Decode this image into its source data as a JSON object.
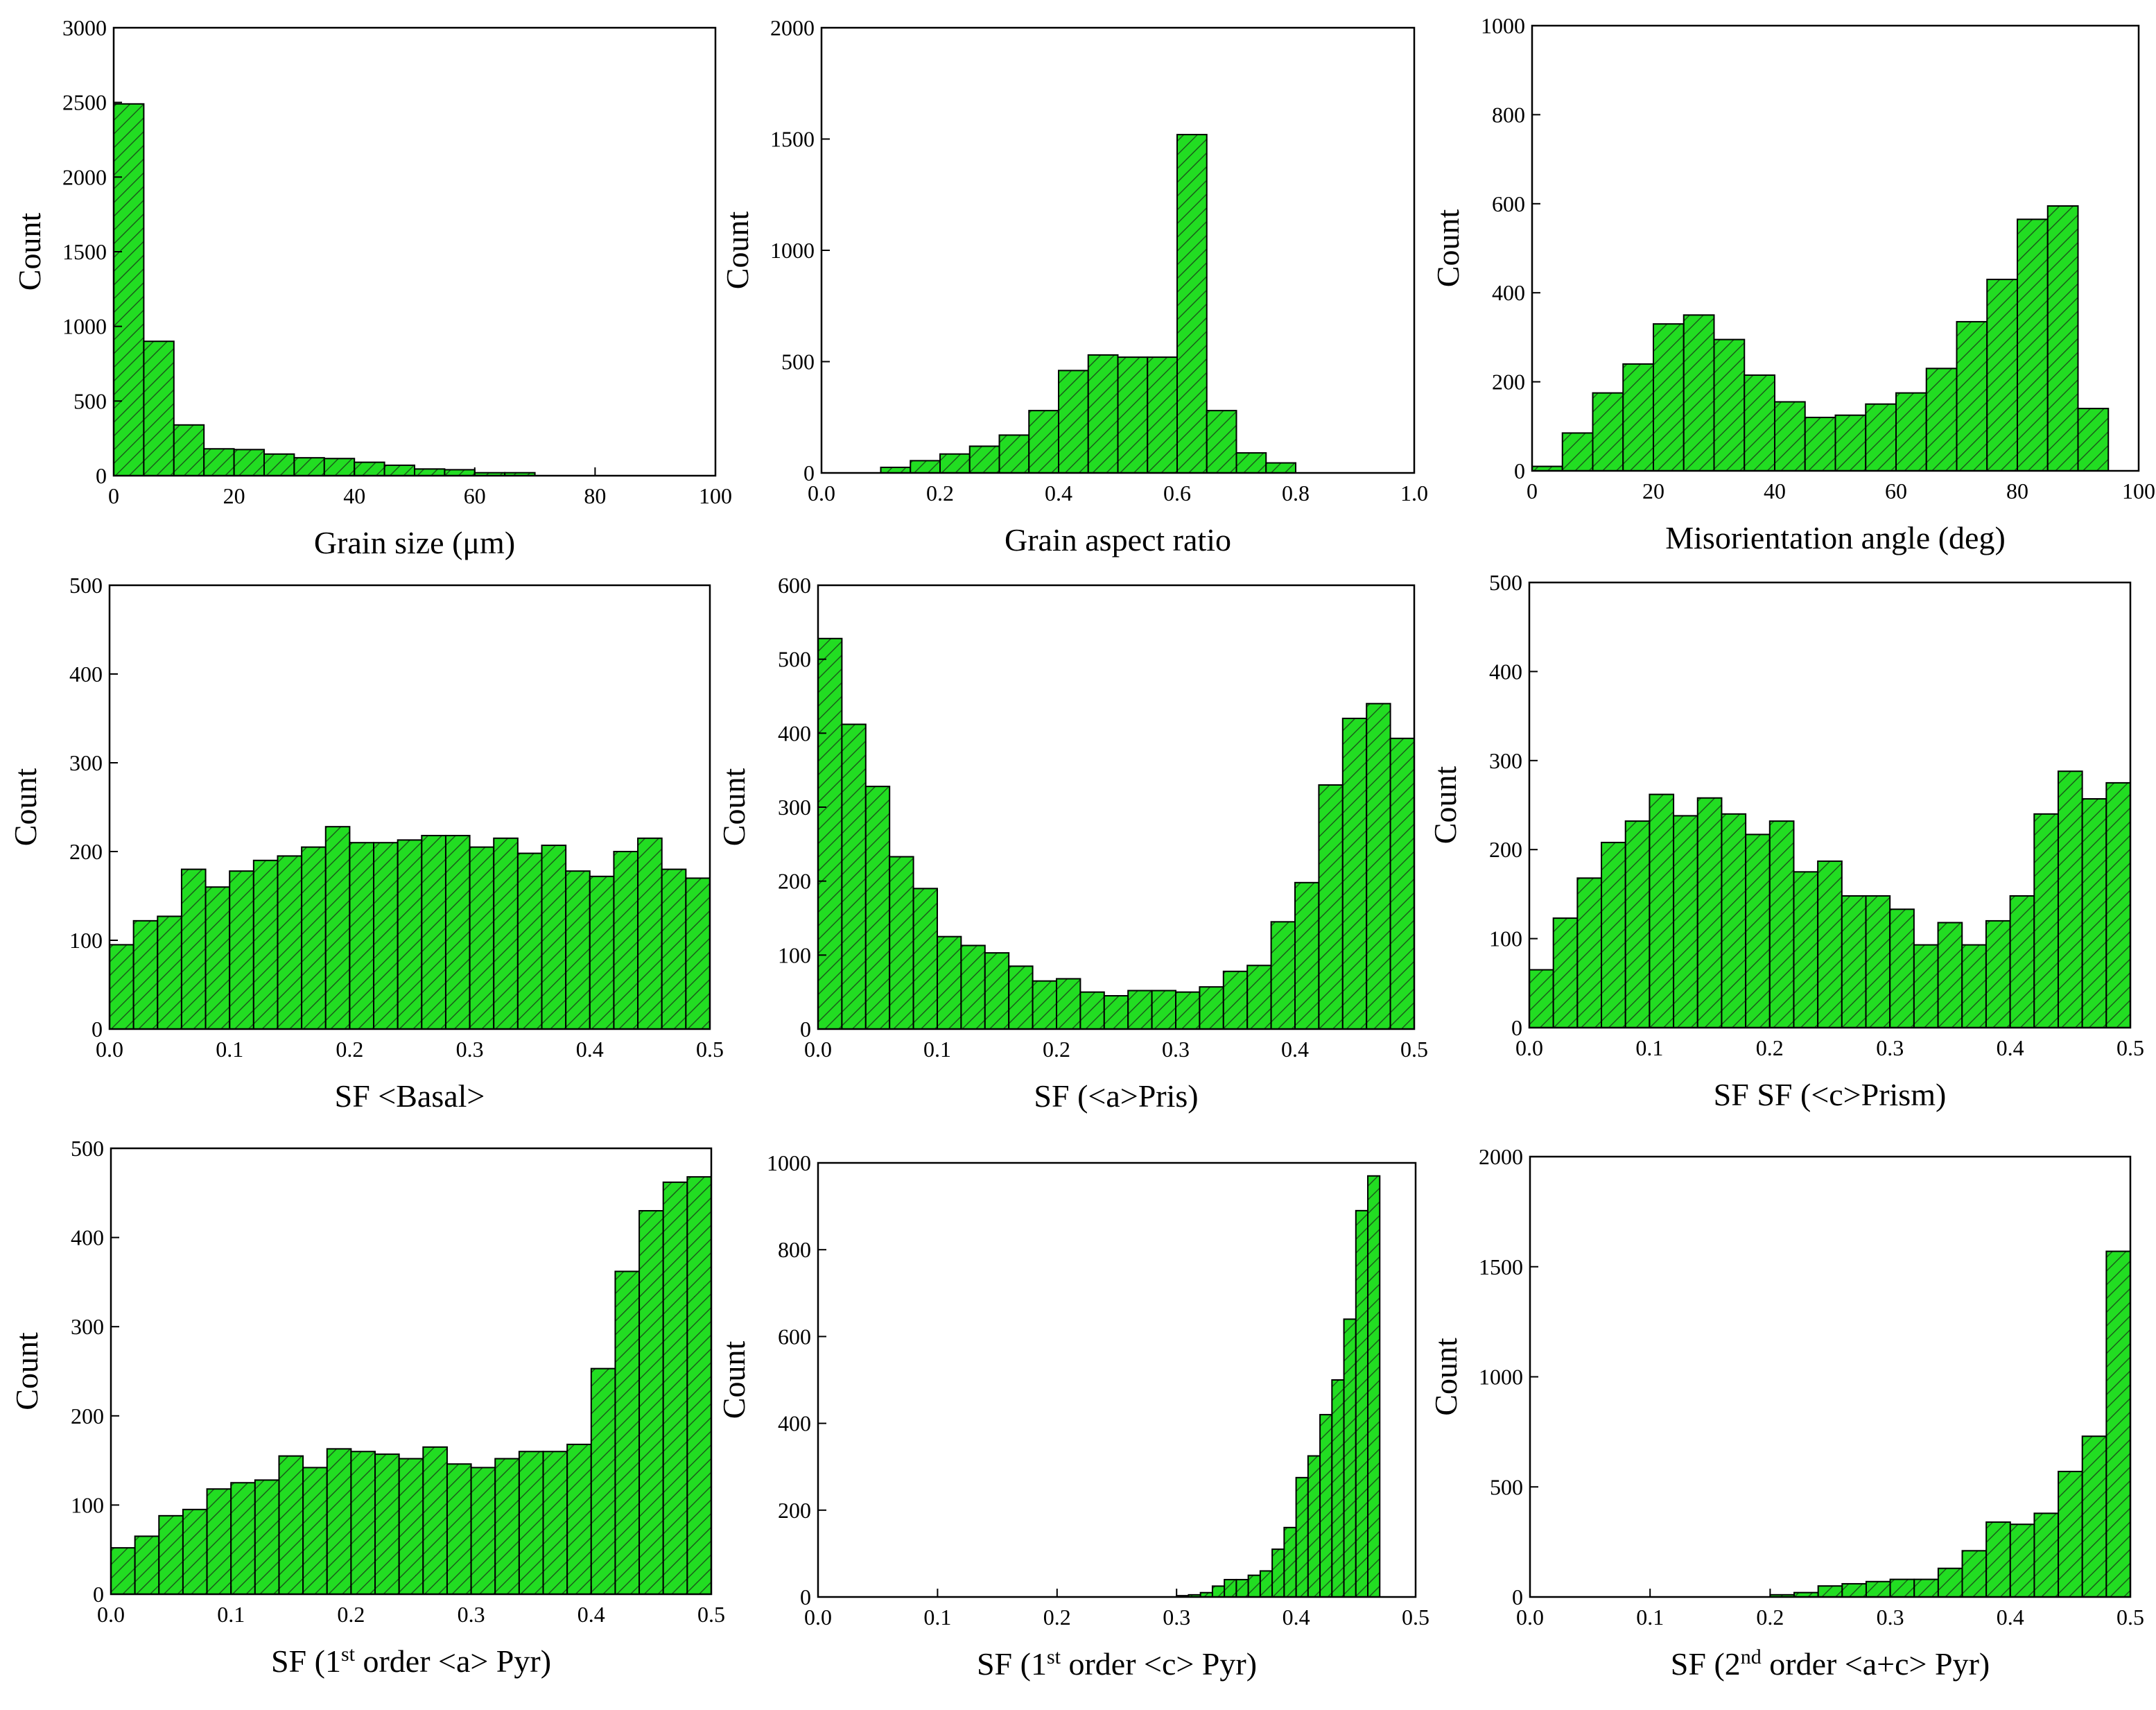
{
  "figure": {
    "accent_fill": "#22dd22",
    "hatch_color": "#1a5e1a",
    "edge_color": "#000000"
  },
  "chart_data": [
    {
      "type": "bar",
      "title": "",
      "xlabel_parts": [
        {
          "t": "Grain size (μm)"
        }
      ],
      "ylabel": "Count",
      "x": {
        "min": 0,
        "max": 100,
        "ticks": [
          0,
          20,
          40,
          60,
          80,
          100
        ],
        "labels": [
          "0",
          "20",
          "40",
          "60",
          "80",
          "100"
        ]
      },
      "y": {
        "min": 0,
        "max": 3000,
        "ticks": [
          0,
          500,
          1000,
          1500,
          2000,
          2500,
          3000
        ],
        "labels": [
          "0",
          "500",
          "1000",
          "1500",
          "2000",
          "2500",
          "3000"
        ]
      },
      "bin_start": 0,
      "bin_width": 5,
      "values": [
        2490,
        900,
        340,
        180,
        175,
        145,
        120,
        115,
        90,
        70,
        45,
        40,
        20,
        20
      ]
    },
    {
      "type": "bar",
      "title": "",
      "xlabel_parts": [
        {
          "t": "Grain aspect ratio"
        }
      ],
      "ylabel": "Count",
      "x": {
        "min": 0,
        "max": 1.0,
        "ticks": [
          0,
          0.2,
          0.4,
          0.6,
          0.8,
          1.0
        ],
        "labels": [
          "0.0",
          "0.2",
          "0.4",
          "0.6",
          "0.8",
          "1.0"
        ]
      },
      "y": {
        "min": 0,
        "max": 2000,
        "ticks": [
          0,
          500,
          1000,
          1500,
          2000
        ],
        "labels": [
          "0",
          "500",
          "1000",
          "1500",
          "2000"
        ]
      },
      "bin_start": 0.1,
      "bin_width": 0.05,
      "values": [
        25,
        55,
        85,
        120,
        170,
        280,
        460,
        530,
        520,
        520,
        1520,
        280,
        90,
        45
      ]
    },
    {
      "type": "bar",
      "title": "",
      "xlabel_parts": [
        {
          "t": "Misorientation angle (deg)"
        }
      ],
      "ylabel": "Count",
      "x": {
        "min": 0,
        "max": 100,
        "ticks": [
          0,
          20,
          40,
          60,
          80,
          100
        ],
        "labels": [
          "0",
          "20",
          "40",
          "60",
          "80",
          "100"
        ]
      },
      "y": {
        "min": 0,
        "max": 1000,
        "ticks": [
          0,
          200,
          400,
          600,
          800,
          1000
        ],
        "labels": [
          "0",
          "200",
          "400",
          "600",
          "800",
          "1000"
        ]
      },
      "bin_start": 0,
      "bin_width": 5,
      "values": [
        10,
        85,
        175,
        240,
        330,
        350,
        295,
        215,
        155,
        120,
        125,
        150,
        175,
        230,
        335,
        430,
        565,
        595,
        140
      ]
    },
    {
      "type": "bar",
      "title": "",
      "xlabel_parts": [
        {
          "t": "SF <Basal>"
        }
      ],
      "ylabel": "Count",
      "x": {
        "min": 0,
        "max": 0.5,
        "ticks": [
          0,
          0.1,
          0.2,
          0.3,
          0.4,
          0.5
        ],
        "labels": [
          "0.0",
          "0.1",
          "0.2",
          "0.3",
          "0.4",
          "0.5"
        ]
      },
      "y": {
        "min": 0,
        "max": 500,
        "ticks": [
          0,
          100,
          200,
          300,
          400,
          500
        ],
        "labels": [
          "0",
          "100",
          "200",
          "300",
          "400",
          "500"
        ]
      },
      "bin_start": 0,
      "bin_width": 0.02,
      "values": [
        95,
        122,
        127,
        180,
        160,
        178,
        190,
        195,
        205,
        228,
        210,
        210,
        213,
        218,
        218,
        205,
        215,
        198,
        207,
        178,
        172,
        200,
        215,
        180,
        170
      ]
    },
    {
      "type": "bar",
      "title": "",
      "xlabel_parts": [
        {
          "t": "SF (<a>Pris)"
        }
      ],
      "ylabel": "Count",
      "x": {
        "min": 0,
        "max": 0.5,
        "ticks": [
          0,
          0.1,
          0.2,
          0.3,
          0.4,
          0.5
        ],
        "labels": [
          "0.0",
          "0.1",
          "0.2",
          "0.3",
          "0.4",
          "0.5"
        ]
      },
      "y": {
        "min": 0,
        "max": 600,
        "ticks": [
          0,
          100,
          200,
          300,
          400,
          500,
          600
        ],
        "labels": [
          "0",
          "100",
          "200",
          "300",
          "400",
          "500",
          "600"
        ]
      },
      "bin_start": 0,
      "bin_width": 0.02,
      "values": [
        528,
        412,
        328,
        233,
        190,
        125,
        113,
        103,
        85,
        65,
        68,
        50,
        45,
        52,
        52,
        50,
        57,
        78,
        86,
        145,
        198,
        330,
        420,
        440,
        393
      ]
    },
    {
      "type": "bar",
      "title": "",
      "xlabel_parts": [
        {
          "t": "SF SF (<c>Prism)"
        }
      ],
      "ylabel": "Count",
      "x": {
        "min": 0,
        "max": 0.5,
        "ticks": [
          0,
          0.1,
          0.2,
          0.3,
          0.4,
          0.5
        ],
        "labels": [
          "0.0",
          "0.1",
          "0.2",
          "0.3",
          "0.4",
          "0.5"
        ]
      },
      "y": {
        "min": 0,
        "max": 500,
        "ticks": [
          0,
          100,
          200,
          300,
          400,
          500
        ],
        "labels": [
          "0",
          "100",
          "200",
          "300",
          "400",
          "500"
        ]
      },
      "bin_start": 0,
      "bin_width": 0.02,
      "values": [
        65,
        123,
        168,
        208,
        232,
        262,
        238,
        258,
        240,
        217,
        232,
        175,
        187,
        148,
        148,
        133,
        93,
        118,
        93,
        120,
        148,
        240,
        288,
        257,
        275
      ]
    },
    {
      "type": "bar",
      "title": "",
      "xlabel_parts": [
        {
          "t": "SF (1"
        },
        {
          "t": "st",
          "sup": true
        },
        {
          "t": " order <a> Pyr)"
        }
      ],
      "ylabel": "Count",
      "x": {
        "min": 0,
        "max": 0.5,
        "ticks": [
          0,
          0.1,
          0.2,
          0.3,
          0.4,
          0.5
        ],
        "labels": [
          "0.0",
          "0.1",
          "0.2",
          "0.3",
          "0.4",
          "0.5"
        ]
      },
      "y": {
        "min": 0,
        "max": 500,
        "ticks": [
          0,
          100,
          200,
          300,
          400,
          500
        ],
        "labels": [
          "0",
          "100",
          "200",
          "300",
          "400",
          "500"
        ]
      },
      "bin_start": 0,
      "bin_width": 0.02,
      "values": [
        52,
        65,
        88,
        95,
        118,
        125,
        128,
        155,
        142,
        163,
        160,
        157,
        152,
        165,
        146,
        142,
        152,
        160,
        160,
        168,
        253,
        362,
        430,
        462,
        468
      ]
    },
    {
      "type": "bar",
      "title": "",
      "xlabel_parts": [
        {
          "t": "SF (1"
        },
        {
          "t": "st",
          "sup": true
        },
        {
          "t": " order <c> Pyr)"
        }
      ],
      "ylabel": "Count",
      "x": {
        "min": 0,
        "max": 0.5,
        "ticks": [
          0,
          0.1,
          0.2,
          0.3,
          0.4,
          0.5
        ],
        "labels": [
          "0.0",
          "0.1",
          "0.2",
          "0.3",
          "0.4",
          "0.5"
        ]
      },
      "y": {
        "min": 0,
        "max": 1000,
        "ticks": [
          0,
          200,
          400,
          600,
          800,
          1000
        ],
        "labels": [
          "0",
          "200",
          "400",
          "600",
          "800",
          "1000"
        ]
      },
      "bin_start": 0.3,
      "bin_width": 0.01,
      "values": [
        3,
        5,
        10,
        25,
        40,
        40,
        50,
        60,
        110,
        160,
        275,
        325,
        420,
        500,
        640,
        890,
        970
      ]
    },
    {
      "type": "bar",
      "title": "",
      "xlabel_parts": [
        {
          "t": "SF (2"
        },
        {
          "t": "nd",
          "sup": true
        },
        {
          "t": " order <a+c> Pyr)"
        }
      ],
      "ylabel": "Count",
      "x": {
        "min": 0,
        "max": 0.5,
        "ticks": [
          0,
          0.1,
          0.2,
          0.3,
          0.4,
          0.5
        ],
        "labels": [
          "0.0",
          "0.1",
          "0.2",
          "0.3",
          "0.4",
          "0.5"
        ]
      },
      "y": {
        "min": 0,
        "max": 2000,
        "ticks": [
          0,
          500,
          1000,
          1500,
          2000
        ],
        "labels": [
          "0",
          "500",
          "1000",
          "1500",
          "2000"
        ]
      },
      "bin_start": 0.2,
      "bin_width": 0.02,
      "values": [
        10,
        20,
        50,
        60,
        70,
        80,
        80,
        130,
        210,
        340,
        330,
        380,
        570,
        730,
        1570
      ]
    }
  ]
}
